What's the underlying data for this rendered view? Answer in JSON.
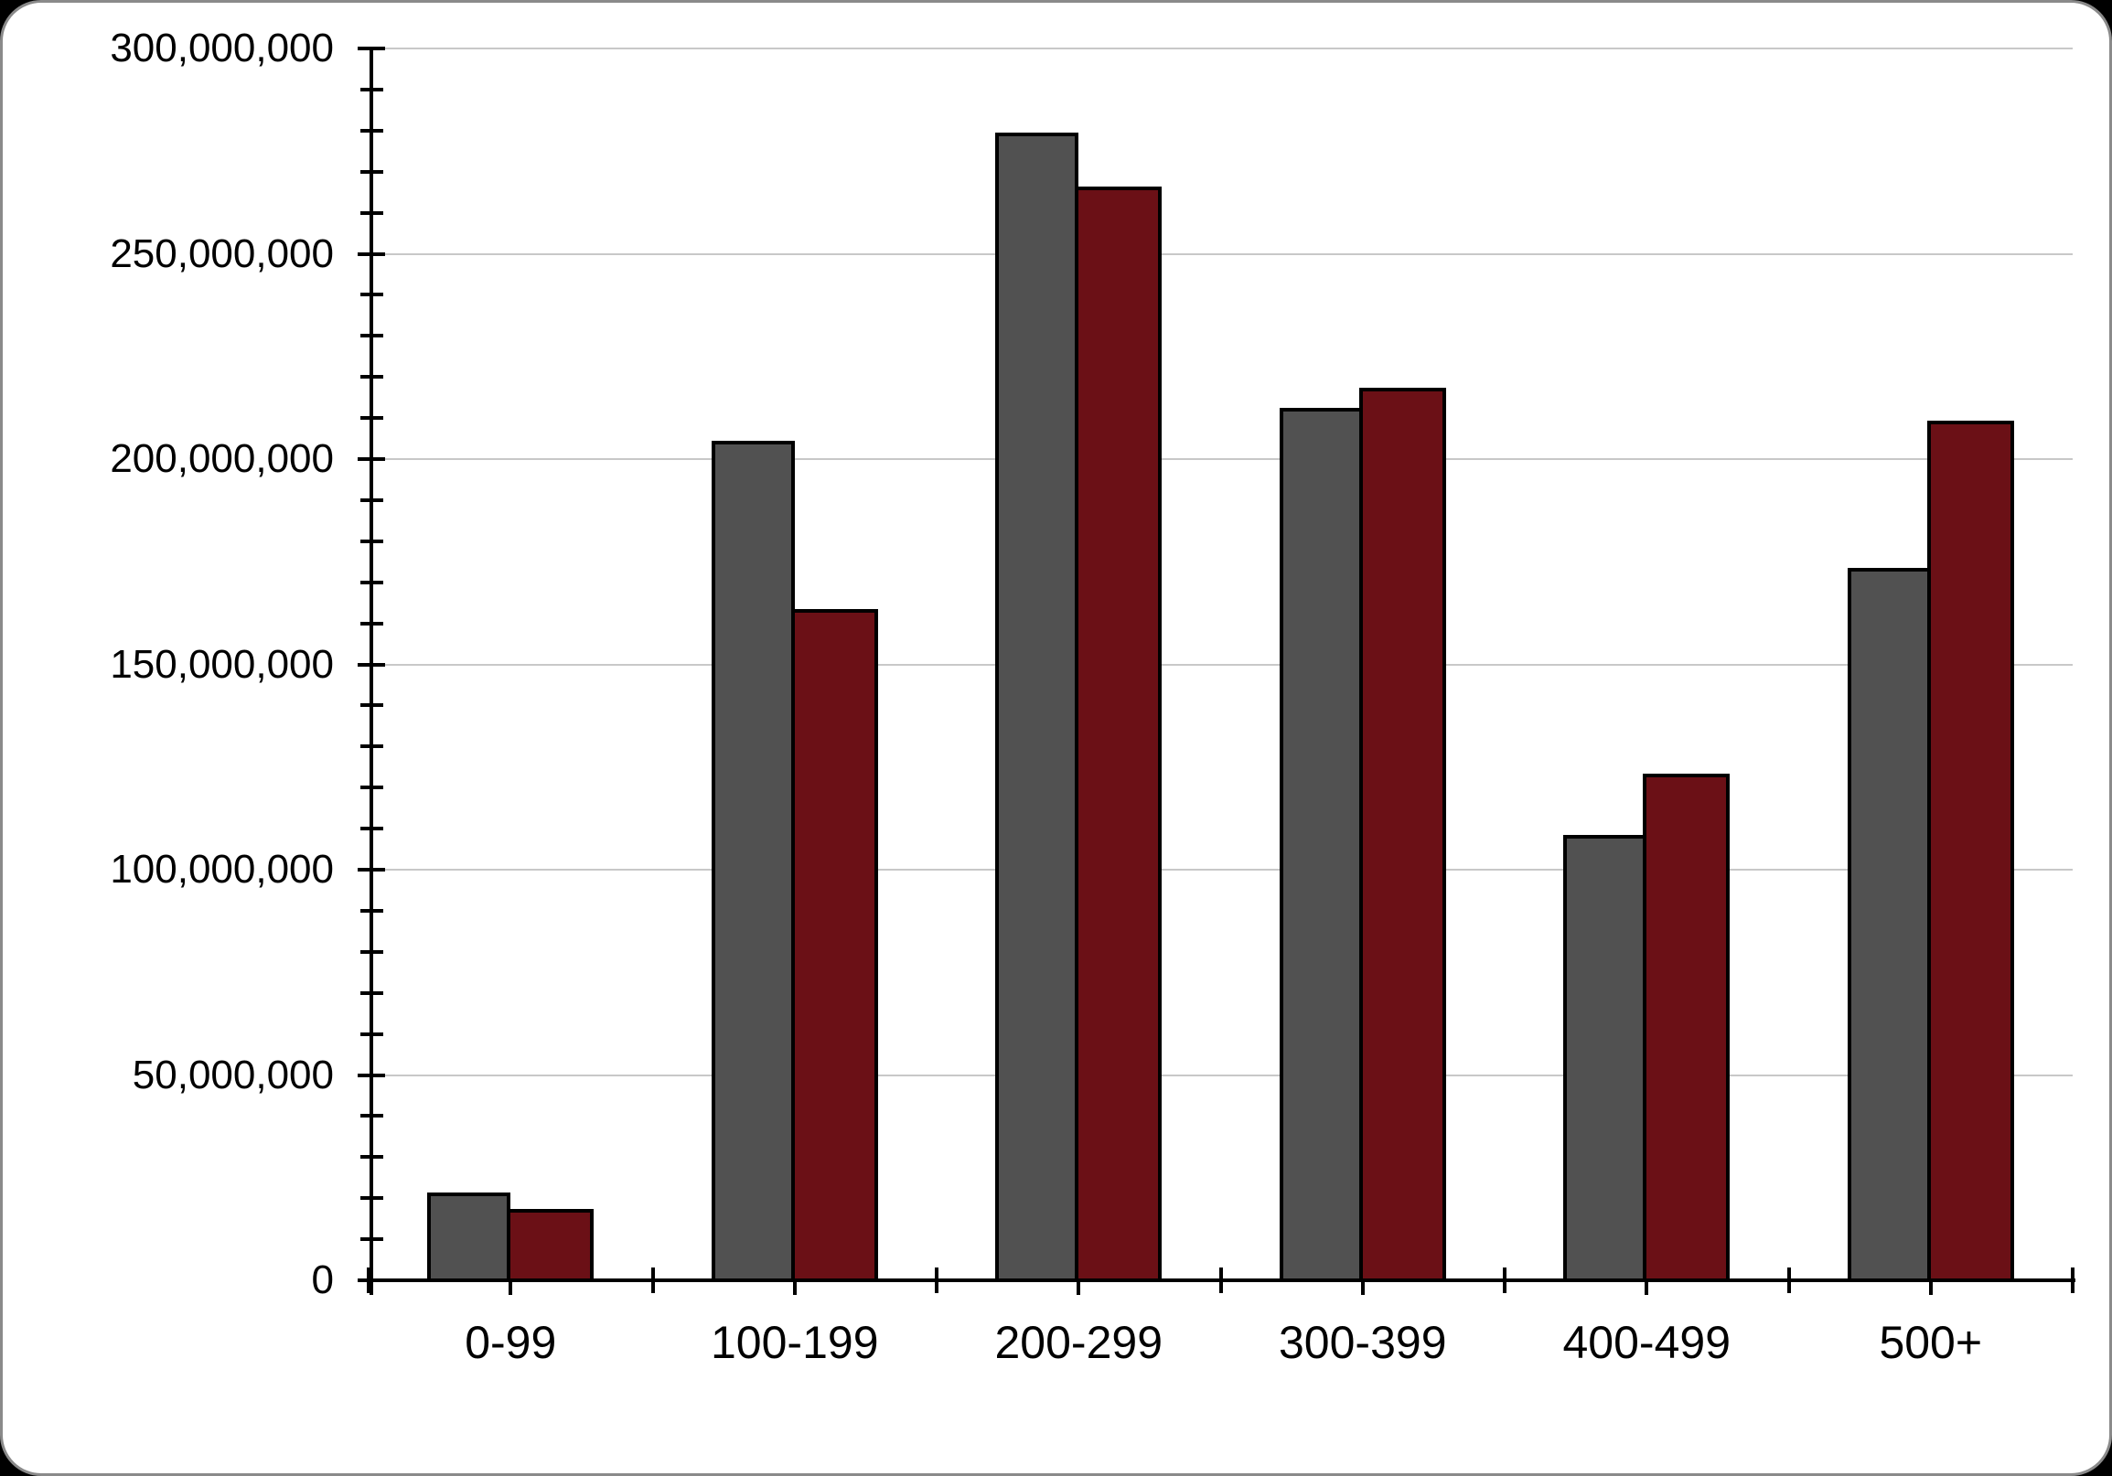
{
  "chart_data": {
    "type": "bar",
    "categories": [
      "0-99",
      "100-199",
      "200-299",
      "300-399",
      "400-499",
      "500+"
    ],
    "series": [
      {
        "name": "gray",
        "color": "#515151",
        "values": [
          21000000,
          204000000,
          279000000,
          212000000,
          108000000,
          173000000
        ]
      },
      {
        "name": "dark-red",
        "color": "#6B1016",
        "values": [
          17000000,
          163000000,
          266000000,
          217000000,
          123000000,
          209000000
        ]
      }
    ],
    "xlabel": "",
    "ylabel": "",
    "ylim": [
      0,
      300000000
    ],
    "y_major_interval": 50000000,
    "y_minor_interval": 10000000,
    "y_tick_labels": [
      "0",
      "50,000,000",
      "100,000,000",
      "150,000,000",
      "200,000,000",
      "250,000,000",
      "300,000,000"
    ],
    "grid": "horizontal-major",
    "legend": "none"
  },
  "colors": {
    "background": "#FFFFFF",
    "frame_outside": "#000000",
    "frame_border": "#8A8A8A",
    "gridline": "#C8C8C8",
    "axis": "#000000",
    "bar_border": "#000000",
    "text": "#000000"
  }
}
